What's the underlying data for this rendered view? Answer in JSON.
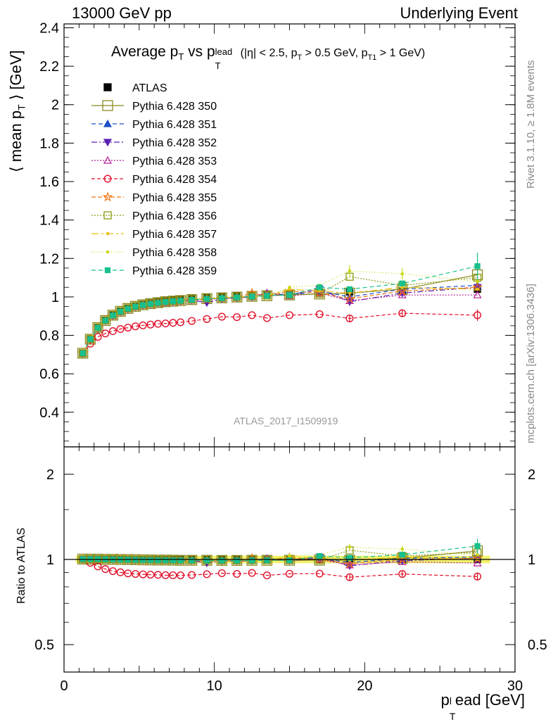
{
  "header": {
    "left": "13000 GeV pp",
    "right": "Underlying Event"
  },
  "side_labels": {
    "rivet": "Rivet 3.1.10, ≥ 1.8M events",
    "mcplots": "mcplots.cern.ch [arXiv:1306.3436]"
  },
  "watermark": "ATLAS_2017_I1509919",
  "colors": {
    "ATLAS": "#000000",
    "s350": "#8b8b20",
    "s351": "#1e4fc8",
    "s352": "#5a20b4",
    "s353": "#b41e96",
    "s354": "#e0102a",
    "s355": "#f07818",
    "s356": "#8c9a10",
    "s357": "#e8c010",
    "s358": "#c8d810",
    "s359": "#18c08c",
    "band": "#f2f26a"
  },
  "chart_data": [
    {
      "type": "scatter",
      "title": "Average p_T vs p_T^lead (|η| < 2.5, p_T > 0.5 GeV, p_T1 > 1 GeV)",
      "title_main": "Average p",
      "title_sub_t": "T",
      "title_vs": " vs p",
      "title_lead_sup": "lead",
      "title_lead_sub": "T",
      "title_cond": "(|η| < 2.5, p",
      "title_cond2": " > 0.5 GeV, p",
      "title_cond3": " > 1 GeV)",
      "title_cond_sub1": "T",
      "title_cond_sub2": "T1",
      "ylabel": "⟨ mean p_T ⟩ [GeV]",
      "ylabel_a": "⟨ mean p",
      "ylabel_sub": "T",
      "ylabel_b": " ⟩ [GeV]",
      "xlim": [
        0,
        30
      ],
      "ylim": [
        0.22,
        2.42
      ],
      "yticks": [
        0.4,
        0.6,
        0.8,
        1,
        1.2,
        1.4,
        1.6,
        1.8,
        2,
        2.2,
        2.4
      ],
      "ytick_labels": [
        "0.4",
        "0.6",
        "0.8",
        "1",
        "1.2",
        "1.4",
        "1.6",
        "1.8",
        "2",
        "2.2",
        "2.4"
      ],
      "x": [
        1.25,
        1.75,
        2.25,
        2.75,
        3.25,
        3.75,
        4.25,
        4.75,
        5.25,
        5.75,
        6.25,
        6.75,
        7.25,
        7.75,
        8.5,
        9.5,
        10.5,
        11.5,
        12.5,
        13.5,
        15.0,
        17.0,
        19.0,
        22.5,
        27.5
      ],
      "series": [
        {
          "name": "ATLAS",
          "key": "ATLAS",
          "values": [
            0.705,
            0.778,
            0.838,
            0.876,
            0.904,
            0.925,
            0.941,
            0.953,
            0.962,
            0.969,
            0.975,
            0.98,
            0.984,
            0.988,
            0.993,
            0.998,
            1.003,
            1.007,
            1.01,
            1.013,
            1.017,
            1.021,
            1.026,
            1.03,
            1.04
          ]
        },
        {
          "name": "Pythia 6.428 350",
          "key": "s350",
          "values": [
            0.707,
            0.78,
            0.84,
            0.877,
            0.905,
            0.925,
            0.94,
            0.951,
            0.959,
            0.965,
            0.97,
            0.975,
            0.978,
            0.981,
            0.986,
            0.991,
            0.995,
            0.999,
            1.003,
            1.006,
            1.01,
            1.015,
            1.02,
            1.04,
            1.115
          ]
        },
        {
          "name": "Pythia 6.428 351",
          "key": "s351",
          "values": [
            0.708,
            0.781,
            0.84,
            0.877,
            0.904,
            0.924,
            0.939,
            0.95,
            0.958,
            0.964,
            0.969,
            0.974,
            0.977,
            0.98,
            0.985,
            0.99,
            0.994,
            0.998,
            1.002,
            1.02,
            1.01,
            1.03,
            1.0,
            1.04,
            1.06
          ]
        },
        {
          "name": "Pythia 6.428 352",
          "key": "s352",
          "values": [
            0.706,
            0.779,
            0.838,
            0.875,
            0.902,
            0.922,
            0.937,
            0.948,
            0.956,
            0.962,
            0.967,
            0.972,
            0.975,
            0.978,
            0.983,
            0.97,
            0.99,
            0.995,
            1.0,
            1.01,
            1.01,
            1.04,
            0.975,
            1.02,
            1.05
          ]
        },
        {
          "name": "Pythia 6.428 353",
          "key": "s353",
          "values": [
            0.706,
            0.778,
            0.837,
            0.874,
            0.901,
            0.921,
            0.936,
            0.947,
            0.955,
            0.961,
            0.966,
            0.97,
            0.974,
            0.977,
            0.982,
            0.987,
            0.991,
            0.995,
            0.999,
            1.02,
            1.005,
            1.02,
            0.98,
            1.01,
            1.01
          ]
        },
        {
          "name": "Pythia 6.428 354",
          "key": "s354",
          "values": [
            0.706,
            0.757,
            0.792,
            0.81,
            0.822,
            0.833,
            0.84,
            0.847,
            0.852,
            0.856,
            0.86,
            0.862,
            0.865,
            0.868,
            0.875,
            0.885,
            0.897,
            0.895,
            0.905,
            0.89,
            0.905,
            0.91,
            0.888,
            0.915,
            0.905
          ]
        },
        {
          "name": "Pythia 6.428 355",
          "key": "s355",
          "values": [
            0.707,
            0.78,
            0.839,
            0.876,
            0.903,
            0.923,
            0.938,
            0.949,
            0.957,
            0.963,
            0.968,
            0.973,
            0.976,
            0.979,
            0.984,
            0.989,
            0.993,
            0.997,
            1.02,
            1.005,
            1.03,
            1.02,
            0.99,
            1.03,
            1.05
          ]
        },
        {
          "name": "Pythia 6.428 356",
          "key": "s356",
          "values": [
            0.707,
            0.781,
            0.841,
            0.878,
            0.906,
            0.926,
            0.941,
            0.952,
            0.96,
            0.966,
            0.971,
            0.976,
            0.979,
            0.982,
            0.987,
            0.992,
            0.996,
            1.0,
            1.004,
            1.008,
            1.012,
            1.016,
            1.105,
            1.06,
            1.1
          ]
        },
        {
          "name": "Pythia 6.428 357",
          "key": "s357",
          "values": [
            0.707,
            0.78,
            0.84,
            0.877,
            0.904,
            0.924,
            0.939,
            0.95,
            0.958,
            0.964,
            0.969,
            0.974,
            0.977,
            0.98,
            0.985,
            0.99,
            0.994,
            0.998,
            1.002,
            1.006,
            1.04,
            1.03,
            1.02,
            1.05,
            1.04
          ]
        },
        {
          "name": "Pythia 6.428 358",
          "key": "s358",
          "values": [
            0.707,
            0.781,
            0.841,
            0.878,
            0.905,
            0.925,
            0.94,
            0.951,
            0.959,
            0.965,
            0.97,
            0.975,
            0.978,
            0.981,
            0.986,
            0.991,
            0.995,
            0.999,
            1.003,
            1.007,
            1.05,
            1.06,
            1.135,
            1.12,
            1.08
          ]
        },
        {
          "name": "Pythia 6.428 359",
          "key": "s359",
          "values": [
            0.707,
            0.78,
            0.84,
            0.877,
            0.904,
            0.924,
            0.939,
            0.95,
            0.958,
            0.964,
            0.969,
            0.974,
            0.977,
            0.98,
            0.985,
            0.99,
            0.994,
            0.998,
            1.002,
            1.006,
            1.01,
            1.05,
            1.04,
            1.07,
            1.16
          ]
        }
      ],
      "errors": {
        "s350": [
          [
            22.5,
            0.03
          ],
          [
            27.5,
            0.05
          ]
        ],
        "s354": [
          [
            19.0,
            0.02
          ],
          [
            22.5,
            0.02
          ],
          [
            27.5,
            0.03
          ]
        ],
        "s358": [
          [
            19.0,
            0.03
          ],
          [
            22.5,
            0.03
          ]
        ],
        "s359": [
          [
            27.5,
            0.07
          ]
        ]
      }
    },
    {
      "type": "scatter",
      "ylabel": "Ratio to ATLAS",
      "xlabel": "p_T^lead [GeV]",
      "xlabel_a": "p",
      "xlabel_sup": "l",
      "xlabel_sub": "T",
      "xlabel_b": "ead [GeV]",
      "xlim": [
        0,
        30
      ],
      "ylim": [
        0.4,
        2.5
      ],
      "log_y": true,
      "yticks": [
        0.5,
        1,
        2
      ],
      "ytick_labels": [
        "0.5",
        "1",
        "2"
      ],
      "xticks": [
        0,
        10,
        20,
        30
      ],
      "xtick_labels": [
        "0",
        "10",
        "20",
        "30"
      ]
    }
  ]
}
